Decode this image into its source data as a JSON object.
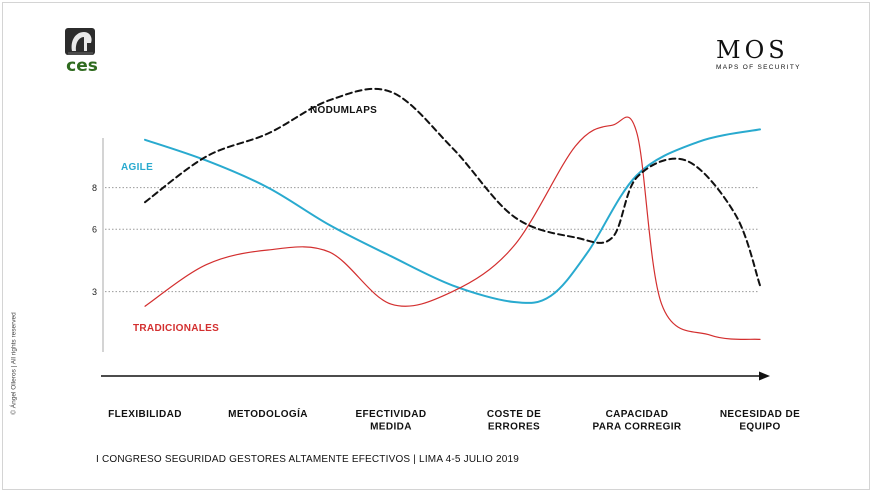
{
  "logos": {
    "left_text": "ces",
    "right_mark": "MOS",
    "right_subtitle": "MAPS OF SECURITY"
  },
  "footer_text": "I CONGRESO SEGURIDAD GESTORES ALTAMENTE EFECTIVOS | LIMA 4-5 JULIO 2019",
  "copyright_text": "© Ángel Olleros | All rights reserved",
  "chart_data": {
    "type": "line",
    "categories": [
      [
        "FLEXIBILIDAD"
      ],
      [
        "METODOLOGÍA"
      ],
      [
        "EFECTIVIDAD",
        "MEDIDA"
      ],
      [
        "COSTE DE",
        "ERRORES"
      ],
      [
        "CAPACIDAD",
        "PARA CORREGIR"
      ],
      [
        "NECESIDAD DE",
        "EQUIPO"
      ]
    ],
    "yticks": [
      3,
      6,
      8
    ],
    "ylim": [
      0,
      10
    ],
    "grid": "dotted lines at y ticks",
    "series": [
      {
        "name": "AGILE",
        "color": "#29aacf",
        "x": [
          0,
          0.5,
          1,
          1.5,
          2,
          2.5,
          3,
          3.3,
          3.6,
          4,
          4.5,
          5
        ],
        "values": [
          10.3,
          9.3,
          8.0,
          6.2,
          4.7,
          3.3,
          2.5,
          2.8,
          4.9,
          8.6,
          10.2,
          10.8
        ]
      },
      {
        "name": "TRADICIONALES",
        "color": "#d32f2f",
        "x": [
          0,
          0.5,
          1,
          1.5,
          2,
          2.5,
          3,
          3.5,
          3.8,
          4,
          4.2,
          4.6,
          5
        ],
        "values": [
          2.3,
          4.3,
          5.0,
          4.9,
          2.4,
          3.0,
          5.2,
          10.0,
          11.0,
          10.6,
          2.4,
          0.9,
          0.7
        ]
      },
      {
        "name": "NODUMLAPS",
        "color": "#111111",
        "x": [
          0,
          0.5,
          1,
          1.5,
          2,
          2.5,
          3,
          3.5,
          3.8,
          4,
          4.4,
          4.8,
          5
        ],
        "values": [
          7.3,
          9.5,
          10.6,
          12.2,
          12.6,
          9.9,
          6.6,
          5.6,
          5.6,
          8.5,
          9.3,
          6.7,
          3.3
        ]
      }
    ]
  }
}
